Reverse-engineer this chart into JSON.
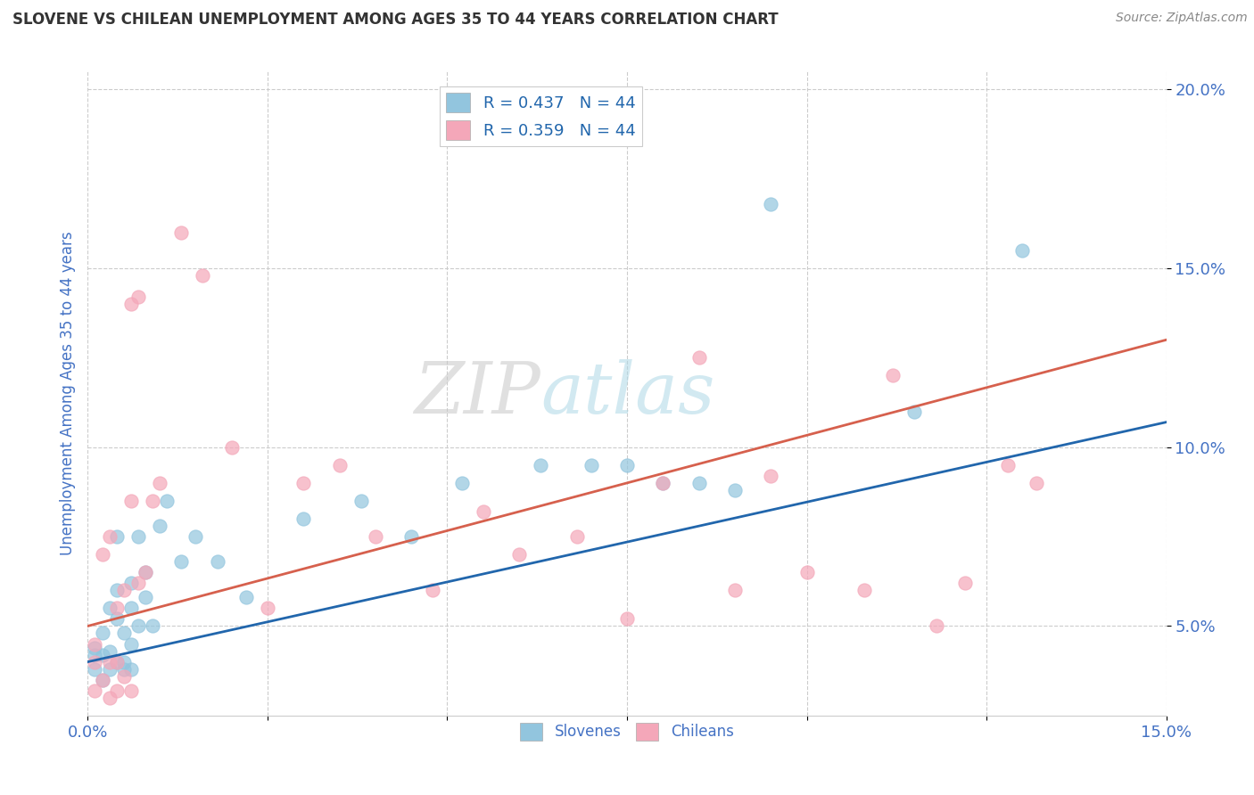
{
  "title": "SLOVENE VS CHILEAN UNEMPLOYMENT AMONG AGES 35 TO 44 YEARS CORRELATION CHART",
  "source": "Source: ZipAtlas.com",
  "ylabel": "Unemployment Among Ages 35 to 44 years",
  "xlim": [
    0.0,
    0.15
  ],
  "ylim": [
    0.025,
    0.205
  ],
  "xticks": [
    0.0,
    0.025,
    0.05,
    0.075,
    0.1,
    0.125,
    0.15
  ],
  "xtick_labels": [
    "0.0%",
    "",
    "",
    "",
    "",
    "",
    "15.0%"
  ],
  "ytick_labels": [
    "5.0%",
    "10.0%",
    "15.0%",
    "20.0%"
  ],
  "yticks": [
    0.05,
    0.1,
    0.15,
    0.2
  ],
  "legend_r1": "R = 0.437   N = 44",
  "legend_r2": "R = 0.359   N = 44",
  "slovene_color": "#92c5de",
  "chilean_color": "#f4a7b9",
  "slovene_line_color": "#2166ac",
  "chilean_line_color": "#d6604d",
  "watermark_top": "ZIP",
  "watermark_bot": "atlas",
  "background_color": "#ffffff",
  "grid_color": "#cccccc",
  "title_color": "#333333",
  "axis_label_color": "#4472c4",
  "tick_color": "#4472c4",
  "slovene_x": [
    0.001,
    0.001,
    0.001,
    0.002,
    0.002,
    0.002,
    0.003,
    0.003,
    0.003,
    0.004,
    0.004,
    0.004,
    0.004,
    0.005,
    0.005,
    0.005,
    0.006,
    0.006,
    0.006,
    0.006,
    0.007,
    0.007,
    0.008,
    0.008,
    0.009,
    0.01,
    0.011,
    0.013,
    0.015,
    0.018,
    0.022,
    0.03,
    0.038,
    0.045,
    0.052,
    0.063,
    0.07,
    0.075,
    0.08,
    0.085,
    0.09,
    0.095,
    0.115,
    0.13
  ],
  "slovene_y": [
    0.042,
    0.038,
    0.044,
    0.048,
    0.042,
    0.035,
    0.055,
    0.043,
    0.038,
    0.04,
    0.052,
    0.06,
    0.075,
    0.04,
    0.038,
    0.048,
    0.045,
    0.062,
    0.038,
    0.055,
    0.05,
    0.075,
    0.058,
    0.065,
    0.05,
    0.078,
    0.085,
    0.068,
    0.075,
    0.068,
    0.058,
    0.08,
    0.085,
    0.075,
    0.09,
    0.095,
    0.095,
    0.095,
    0.09,
    0.09,
    0.088,
    0.168,
    0.11,
    0.155
  ],
  "chilean_x": [
    0.001,
    0.001,
    0.001,
    0.002,
    0.002,
    0.003,
    0.003,
    0.003,
    0.004,
    0.004,
    0.004,
    0.005,
    0.005,
    0.006,
    0.006,
    0.006,
    0.007,
    0.007,
    0.008,
    0.009,
    0.01,
    0.013,
    0.016,
    0.02,
    0.025,
    0.03,
    0.035,
    0.04,
    0.048,
    0.055,
    0.06,
    0.068,
    0.075,
    0.08,
    0.085,
    0.09,
    0.095,
    0.1,
    0.108,
    0.112,
    0.118,
    0.122,
    0.128,
    0.132
  ],
  "chilean_y": [
    0.04,
    0.045,
    0.032,
    0.035,
    0.07,
    0.04,
    0.03,
    0.075,
    0.04,
    0.032,
    0.055,
    0.036,
    0.06,
    0.14,
    0.085,
    0.032,
    0.062,
    0.142,
    0.065,
    0.085,
    0.09,
    0.16,
    0.148,
    0.1,
    0.055,
    0.09,
    0.095,
    0.075,
    0.06,
    0.082,
    0.07,
    0.075,
    0.052,
    0.09,
    0.125,
    0.06,
    0.092,
    0.065,
    0.06,
    0.12,
    0.05,
    0.062,
    0.095,
    0.09
  ],
  "slovene_trendline": [
    0.04,
    0.107
  ],
  "chilean_trendline": [
    0.05,
    0.13
  ]
}
